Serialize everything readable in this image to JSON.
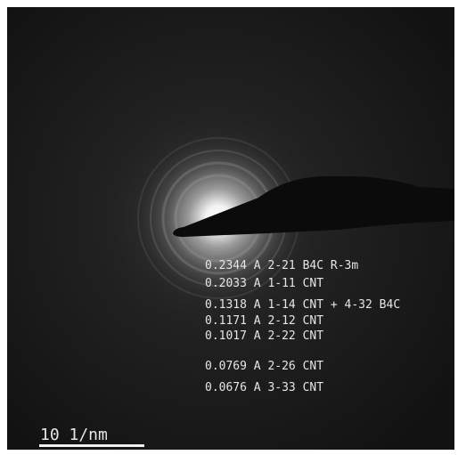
{
  "annotations": [
    "0.2344 A 2-21 B4C R-3m",
    "0.2033 A 1-11 CNT",
    "0.1318 A 1-14 CNT + 4-32 B4C",
    "0.1171 A 2-12 CNT",
    "0.1017 A 2-22 CNT",
    "0.0769 A 2-26 CNT",
    "0.0676 A 3-33 CNT"
  ],
  "scale_bar": {
    "label": "10 1/nm"
  }
}
